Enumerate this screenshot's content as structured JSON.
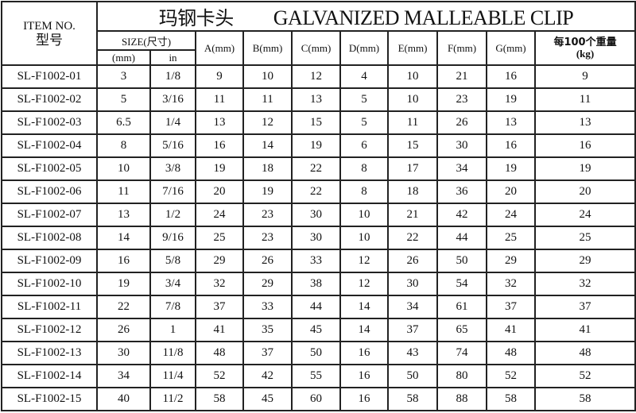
{
  "title_cn": "玛钢卡头",
  "title_en": "GALVANIZED MALLEABLE CLIP",
  "headers": {
    "item_en": "ITEM NO.",
    "item_cn": "型号",
    "size": "SIZE(尺寸)",
    "size_mm": "(mm)",
    "size_in": "in",
    "a": "A(mm)",
    "b": "B(mm)",
    "c": "C(mm)",
    "d": "D(mm)",
    "e": "E(mm)",
    "f": "F(mm)",
    "g": "G(mm)",
    "weight_cn": "每100个重量",
    "weight_unit": "(kg)"
  },
  "rows": [
    [
      "SL-F1002-01",
      "3",
      "1/8",
      "9",
      "10",
      "12",
      "4",
      "10",
      "21",
      "16",
      "9"
    ],
    [
      "SL-F1002-02",
      "5",
      "3/16",
      "11",
      "11",
      "13",
      "5",
      "10",
      "23",
      "19",
      "11"
    ],
    [
      "SL-F1002-03",
      "6.5",
      "1/4",
      "13",
      "12",
      "15",
      "5",
      "11",
      "26",
      "13",
      "13"
    ],
    [
      "SL-F1002-04",
      "8",
      "5/16",
      "16",
      "14",
      "19",
      "6",
      "15",
      "30",
      "16",
      "16"
    ],
    [
      "SL-F1002-05",
      "10",
      "3/8",
      "19",
      "18",
      "22",
      "8",
      "17",
      "34",
      "19",
      "19"
    ],
    [
      "SL-F1002-06",
      "11",
      "7/16",
      "20",
      "19",
      "22",
      "8",
      "18",
      "36",
      "20",
      "20"
    ],
    [
      "SL-F1002-07",
      "13",
      "1/2",
      "24",
      "23",
      "30",
      "10",
      "21",
      "42",
      "24",
      "24"
    ],
    [
      "SL-F1002-08",
      "14",
      "9/16",
      "25",
      "23",
      "30",
      "10",
      "22",
      "44",
      "25",
      "25"
    ],
    [
      "SL-F1002-09",
      "16",
      "5/8",
      "29",
      "26",
      "33",
      "12",
      "26",
      "50",
      "29",
      "29"
    ],
    [
      "SL-F1002-10",
      "19",
      "3/4",
      "32",
      "29",
      "38",
      "12",
      "30",
      "54",
      "32",
      "32"
    ],
    [
      "SL-F1002-11",
      "22",
      "7/8",
      "37",
      "33",
      "44",
      "14",
      "34",
      "61",
      "37",
      "37"
    ],
    [
      "SL-F1002-12",
      "26",
      "1",
      "41",
      "35",
      "45",
      "14",
      "37",
      "65",
      "41",
      "41"
    ],
    [
      "SL-F1002-13",
      "30",
      "11/8",
      "48",
      "37",
      "50",
      "16",
      "43",
      "74",
      "48",
      "48"
    ],
    [
      "SL-F1002-14",
      "34",
      "11/4",
      "52",
      "42",
      "55",
      "16",
      "50",
      "80",
      "52",
      "52"
    ],
    [
      "SL-F1002-15",
      "40",
      "11/2",
      "58",
      "45",
      "60",
      "16",
      "58",
      "88",
      "58",
      "58"
    ]
  ]
}
